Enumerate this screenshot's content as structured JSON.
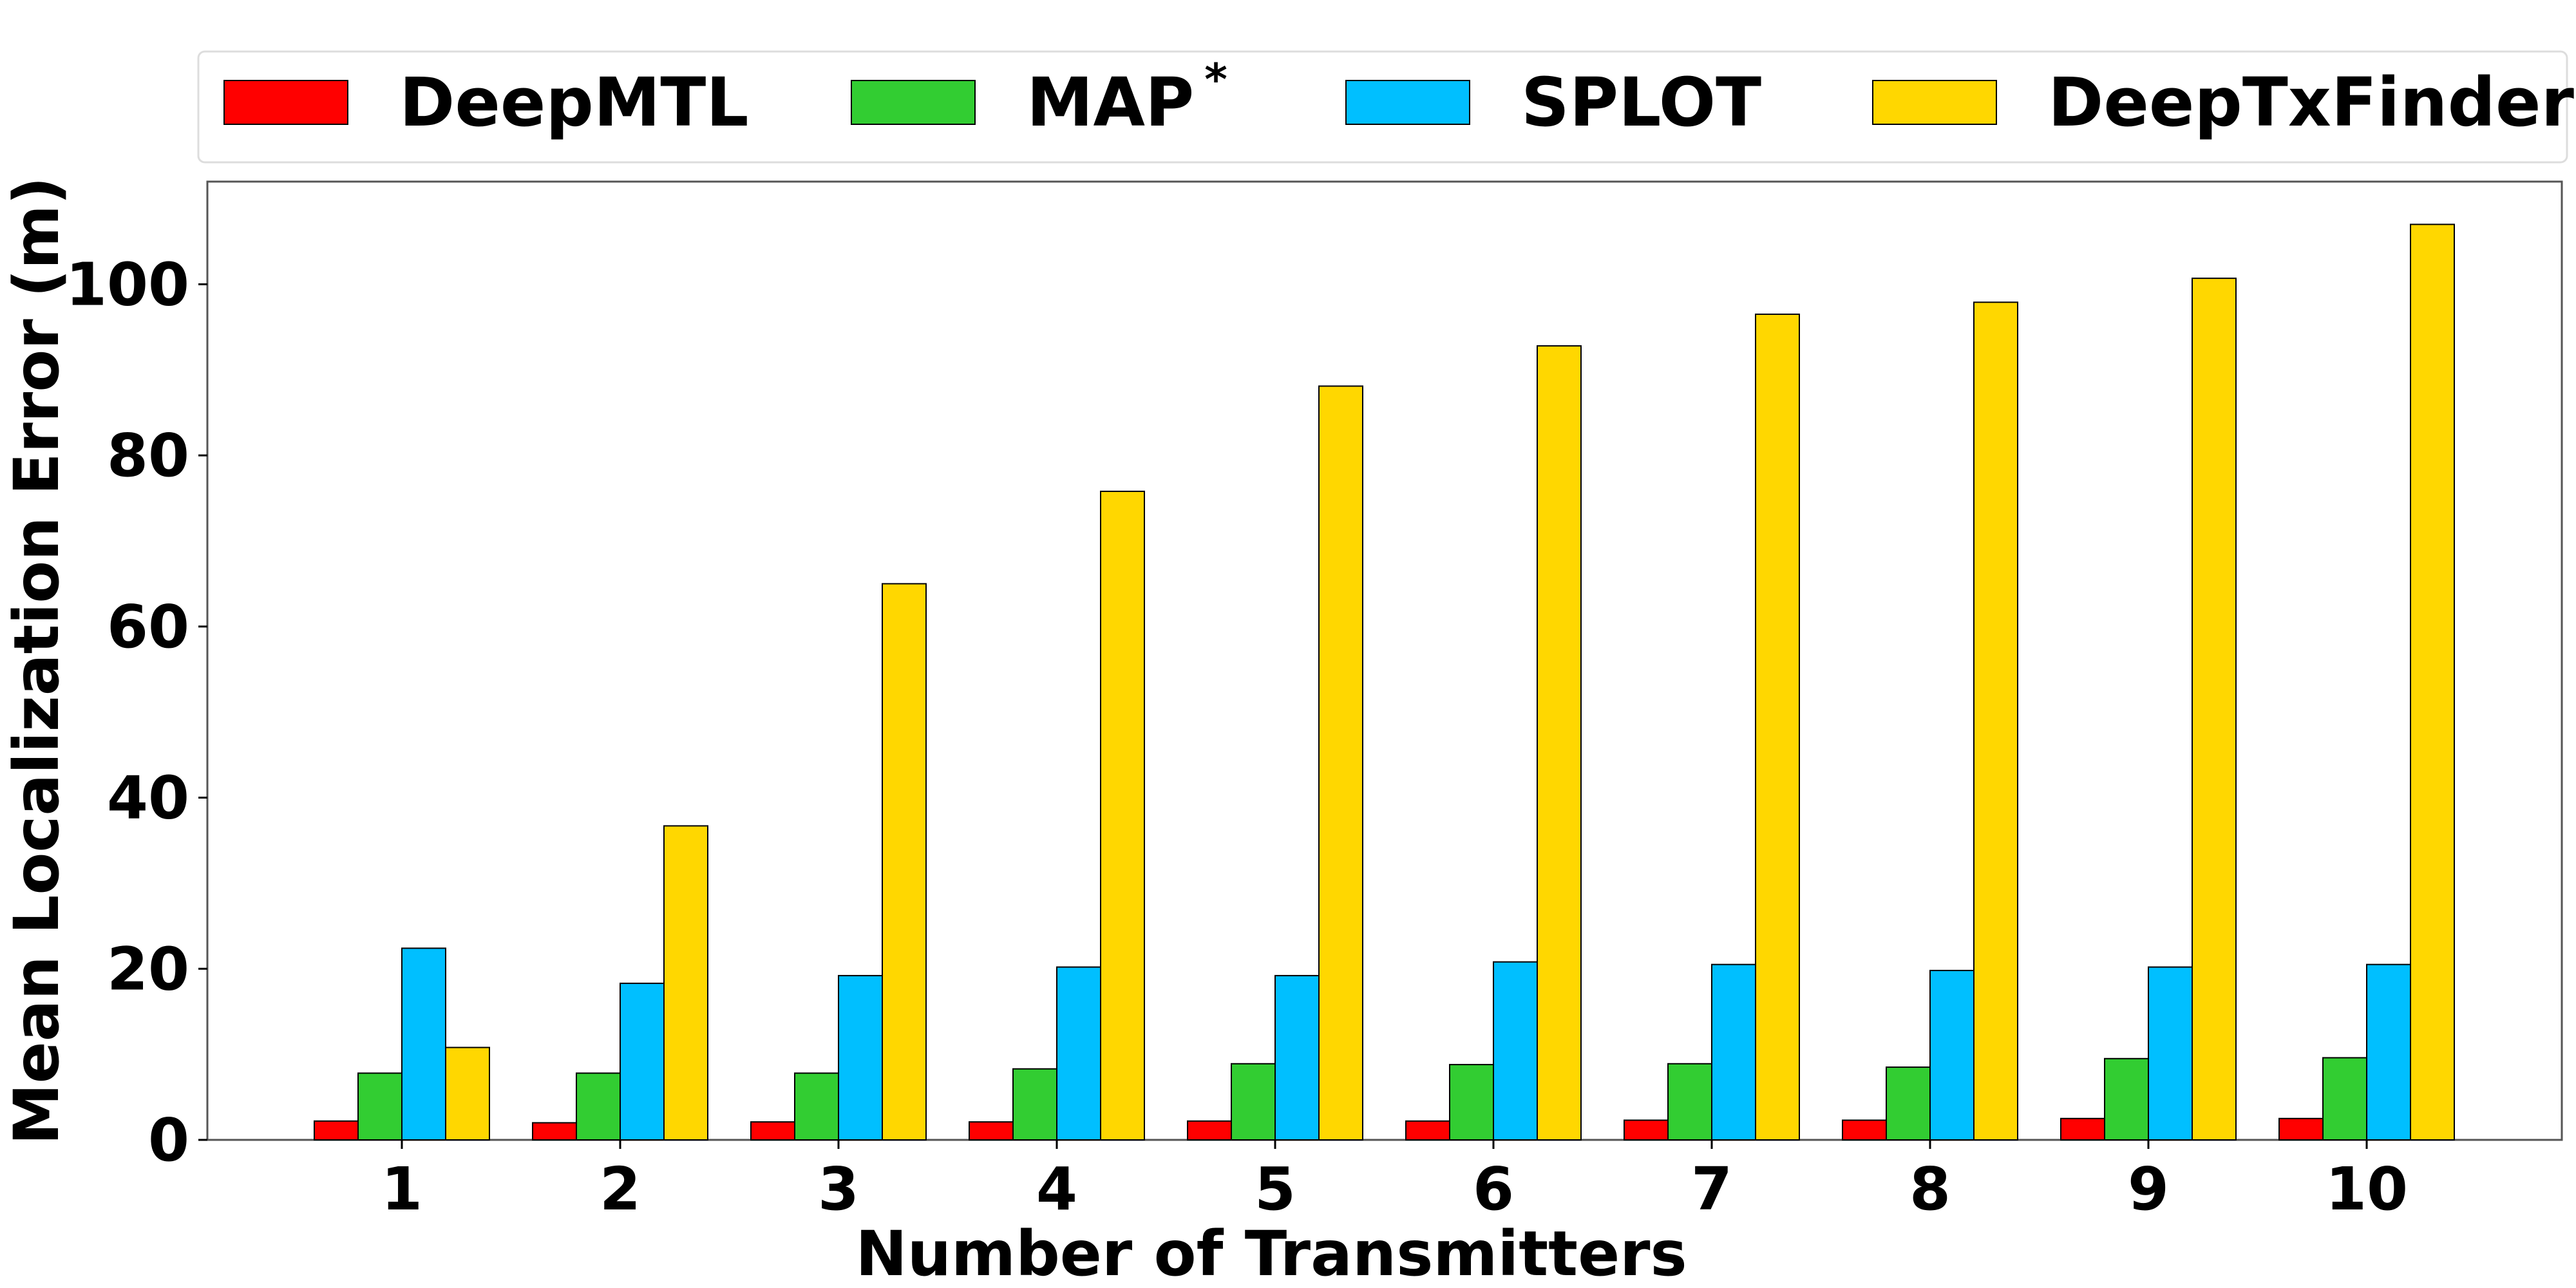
{
  "chart_data": {
    "type": "bar",
    "xlabel": "Number of Transmitters",
    "ylabel": "Mean Localization Error (m)",
    "categories": [
      "1",
      "2",
      "3",
      "4",
      "5",
      "6",
      "7",
      "8",
      "9",
      "10"
    ],
    "ylim": [
      0,
      112
    ],
    "yticks": [
      0,
      20,
      40,
      60,
      80,
      100
    ],
    "grid": false,
    "legend_position": "top",
    "series": [
      {
        "name": "DeepMTL",
        "name_sup": "",
        "color": "#ff0000",
        "values": [
          2.2,
          2.0,
          2.1,
          2.1,
          2.2,
          2.2,
          2.3,
          2.3,
          2.5,
          2.5
        ]
      },
      {
        "name": "MAP",
        "name_sup": "*",
        "color": "#32cd32",
        "values": [
          7.8,
          7.8,
          7.8,
          8.3,
          8.9,
          8.8,
          8.9,
          8.5,
          9.5,
          9.6
        ]
      },
      {
        "name": "SPLOT",
        "name_sup": "",
        "color": "#00bfff",
        "values": [
          22.4,
          18.3,
          19.2,
          20.2,
          19.2,
          20.8,
          20.5,
          19.8,
          20.2,
          20.5
        ]
      },
      {
        "name": "DeepTxFinder",
        "name_sup": "",
        "color": "#ffd700",
        "values": [
          10.8,
          36.7,
          65.0,
          75.8,
          88.1,
          92.8,
          96.5,
          97.9,
          100.7,
          107.0
        ]
      }
    ]
  }
}
